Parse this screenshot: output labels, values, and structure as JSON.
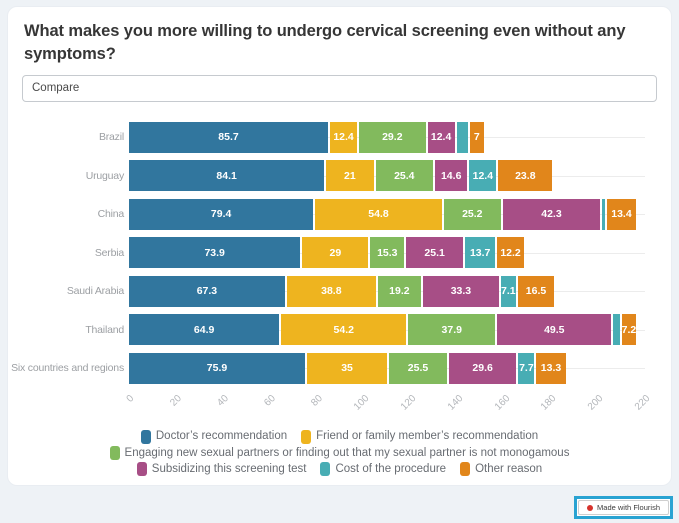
{
  "title": "What makes you more willing to undergo cervical screening even without any symptoms?",
  "compare": {
    "label": "Compare"
  },
  "chart_data": {
    "type": "bar",
    "orientation": "horizontal",
    "stacked": true,
    "title": "What makes you more willing to undergo cervical screening even without any symptoms?",
    "xlim": [
      0,
      220
    ],
    "x_ticks": [
      0,
      20,
      40,
      60,
      80,
      100,
      120,
      140,
      160,
      180,
      200,
      220
    ],
    "grid": "row-guide-lines",
    "legend_position": "bottom-center",
    "categories": [
      "Brazil",
      "Uruguay",
      "China",
      "Serbia",
      "Saudi Arabia",
      "Thailand",
      "Six countries and regions"
    ],
    "series": [
      {
        "name": "Doctor’s recommendation",
        "color": "#31769e",
        "values": [
          85.7,
          84.1,
          79.4,
          73.9,
          67.3,
          64.9,
          75.9
        ],
        "labels": [
          "85.7",
          "84.1",
          "79.4",
          "73.9",
          "67.3",
          "64.9",
          "75.9"
        ]
      },
      {
        "name": "Friend or family member’s recommendation",
        "color": "#eeb41f",
        "values": [
          12.4,
          21,
          54.8,
          29,
          38.8,
          54.2,
          35
        ],
        "labels": [
          "12.4",
          "21",
          "54.8",
          "29",
          "38.8",
          "54.2",
          "35"
        ]
      },
      {
        "name": "Engaging new sexual partners or finding out that my sexual partner is not monogamous",
        "color": "#82ba5d",
        "values": [
          29.2,
          25.4,
          25.2,
          15.3,
          19.2,
          37.9,
          25.5
        ],
        "labels": [
          "29.2",
          "25.4",
          "25.2",
          "15.3",
          "19.2",
          "37.9",
          "25.5"
        ]
      },
      {
        "name": "Subsidizing this screening test",
        "color": "#a74e86",
        "values": [
          12.4,
          14.6,
          42.3,
          25.1,
          33.3,
          49.5,
          29.6
        ],
        "labels": [
          "12.4",
          "14.6",
          "42.3",
          "25.1",
          "33.3",
          "49.5",
          "29.6"
        ]
      },
      {
        "name": "Cost of the procedure",
        "color": "#48adb4",
        "values": [
          5.5,
          12.4,
          2,
          13.7,
          7.1,
          3.5,
          7.7
        ],
        "labels": [
          "",
          "12.4",
          "",
          "13.7",
          "7.1",
          "",
          "7.7"
        ]
      },
      {
        "name": "Other reason",
        "color": "#e1861b",
        "values": [
          7,
          23.8,
          13.4,
          12.2,
          16.5,
          7.2,
          13.3
        ],
        "labels": [
          "7",
          "23.8",
          "13.4",
          "12.2",
          "16.5",
          "7.2",
          "13.3"
        ]
      }
    ]
  },
  "badge": {
    "label": "Made with Flourish"
  },
  "colors": {
    "page_background": "#eef2f6",
    "card_background": "#ffffff",
    "badge_ring": "#29a3d2"
  }
}
